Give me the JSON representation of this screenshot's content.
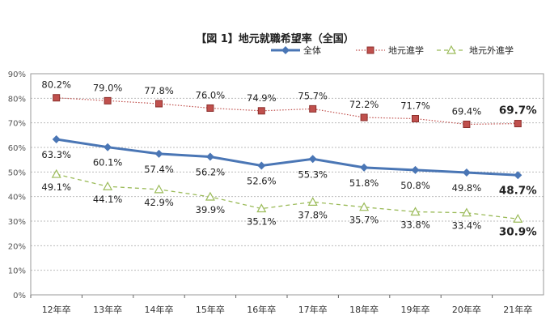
{
  "chart_data": {
    "type": "line",
    "title": "【図 1】地元就職希望率（全国）",
    "categories": [
      "12年卒",
      "13年卒",
      "14年卒",
      "15年卒",
      "16年卒",
      "17年卒",
      "18年卒",
      "19年卒",
      "20年卒",
      "21年卒"
    ],
    "ylim": [
      0,
      90
    ],
    "yticks": [
      "0%",
      "10%",
      "20%",
      "30%",
      "40%",
      "50%",
      "60%",
      "70%",
      "80%",
      "90%"
    ],
    "grid": true,
    "legend_position": "top-right",
    "series": [
      {
        "name": "全体",
        "values": [
          63.3,
          60.1,
          57.4,
          56.2,
          52.6,
          55.3,
          51.8,
          50.8,
          49.8,
          48.7
        ],
        "labels": [
          "63.3%",
          "60.1%",
          "57.4%",
          "56.2%",
          "52.6%",
          "55.3%",
          "51.8%",
          "50.8%",
          "49.8%",
          "48.7%"
        ],
        "color": "#4a76b5",
        "marker": "diamond",
        "line": "solid",
        "label_side": "below"
      },
      {
        "name": "地元進学",
        "values": [
          80.2,
          79.0,
          77.8,
          76.0,
          74.9,
          75.7,
          72.2,
          71.7,
          69.4,
          69.7
        ],
        "labels": [
          "80.2%",
          "79.0%",
          "77.8%",
          "76.0%",
          "74.9%",
          "75.7%",
          "72.2%",
          "71.7%",
          "69.4%",
          "69.7%"
        ],
        "color": "#c0504d",
        "marker": "square",
        "line": "dotted",
        "label_side": "above"
      },
      {
        "name": "地元外進学",
        "values": [
          49.1,
          44.1,
          42.9,
          39.9,
          35.1,
          37.8,
          35.7,
          33.8,
          33.4,
          30.9
        ],
        "labels": [
          "49.1%",
          "44.1%",
          "42.9%",
          "39.9%",
          "35.1%",
          "37.8%",
          "35.7%",
          "33.8%",
          "33.4%",
          "30.9%"
        ],
        "color": "#9bbb59",
        "marker": "triangle-open",
        "line": "dashed",
        "label_side": "below"
      }
    ]
  }
}
